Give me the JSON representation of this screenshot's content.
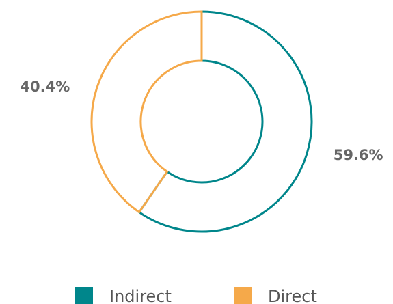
{
  "chart_data": {
    "type": "donut",
    "categories": [
      "Indirect",
      "Direct"
    ],
    "values": [
      59.6,
      40.4
    ],
    "value_labels": [
      "59.6%",
      "40.4%"
    ],
    "colors": [
      "#00868b",
      "#f5a94a"
    ]
  }
}
